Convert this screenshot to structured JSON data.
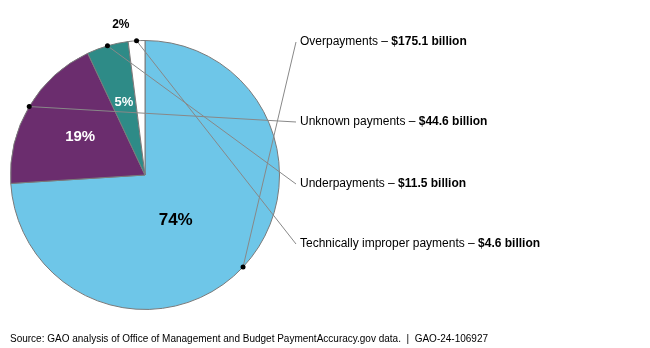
{
  "chart_data": {
    "type": "pie",
    "categories": [
      "Overpayments – ",
      "Unknown payments – ",
      "Underpayments – ",
      "Technically improper payments – "
    ],
    "values": [
      74,
      19,
      5,
      2
    ],
    "value_labels": [
      "74%",
      "19%",
      "5%",
      "2%"
    ],
    "colors": [
      "#6EC6E8",
      "#6B2D6E",
      "#2E8B87",
      "#FFFFFF"
    ],
    "data_labels": true,
    "amounts": [
      175.1,
      44.6,
      11.5,
      4.6
    ],
    "amount_labels": [
      "$175.1 billion",
      "$44.6 billion",
      "$11.5 billion",
      "$4.6 billion"
    ],
    "annotations": [
      "Source: GAO analysis of Office of Management and Budget PaymentAccuracy.gov data.  |  GAO-24-106927"
    ]
  }
}
